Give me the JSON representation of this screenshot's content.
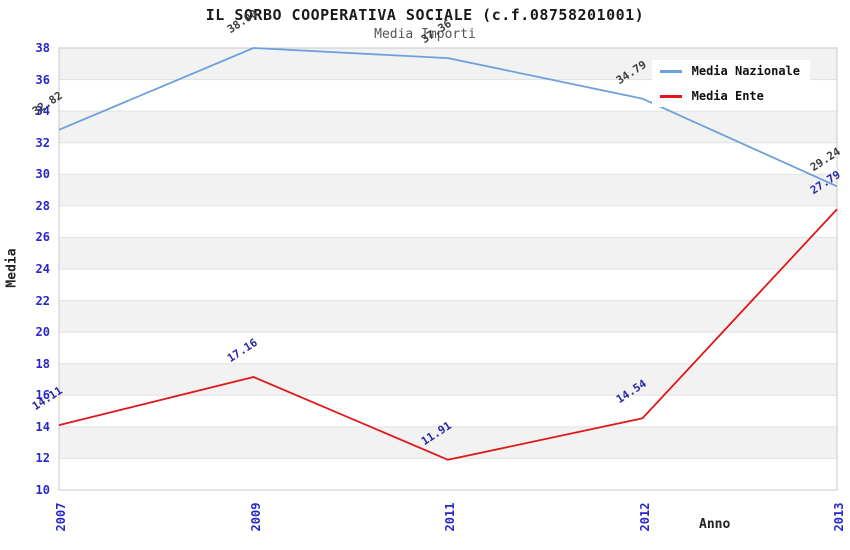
{
  "title": "IL SORBO COOPERATIVA SOCIALE (c.f.08758201001)",
  "subtitle": "Media Importi",
  "chart_data": {
    "type": "line",
    "categories": [
      "2007",
      "2009",
      "2011",
      "2012",
      "2013"
    ],
    "series": [
      {
        "name": "Media Nazionale",
        "color": "#6ea0dc",
        "label_color": "#3c3c3c",
        "values": [
          32.82,
          38.0,
          37.36,
          34.79,
          29.24
        ]
      },
      {
        "name": "Media Ente",
        "color": "#e01818",
        "label_color": "#2929a3",
        "values": [
          14.11,
          17.16,
          11.91,
          14.54,
          27.79
        ]
      }
    ],
    "xlabel": "Anno",
    "ylabel": "Media",
    "ylim": [
      10,
      38
    ],
    "ytick_step": 2,
    "grid": "horizontal-bands",
    "band_colors": [
      "#f2f2f2",
      "#ffffff"
    ],
    "gridline_color": "#e1e1e1",
    "border_color": "#c8c8c8",
    "axis_tick_color": "#2828c8",
    "legend_position": "top-right"
  }
}
